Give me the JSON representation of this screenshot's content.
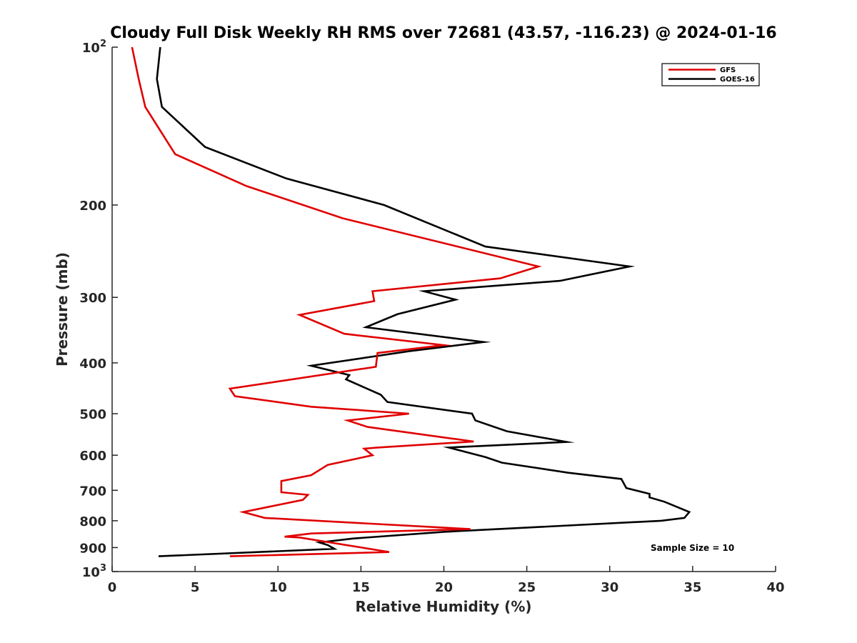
{
  "chart_data": {
    "type": "line",
    "title": "Cloudy Full Disk Weekly RH RMS over 72681 (43.57, -116.23) @ 2024-01-16",
    "xlabel": "Relative Humidity (%)",
    "ylabel": "Pressure (mb)",
    "xlim": [
      0,
      40
    ],
    "ylim": [
      100,
      1000
    ],
    "y_scale": "log",
    "y_reversed": true,
    "grid": false,
    "legend_position": "top-right",
    "x_ticks": [
      "0",
      "5",
      "10",
      "15",
      "20",
      "25",
      "30",
      "35",
      "40"
    ],
    "y_ticks": [
      {
        "value": 100,
        "label": "10",
        "sup": "2"
      },
      {
        "value": 200,
        "label": "200"
      },
      {
        "value": 300,
        "label": "300"
      },
      {
        "value": 400,
        "label": "400"
      },
      {
        "value": 500,
        "label": "500"
      },
      {
        "value": 600,
        "label": "600"
      },
      {
        "value": 700,
        "label": "700"
      },
      {
        "value": 800,
        "label": "800"
      },
      {
        "value": 900,
        "label": "900"
      },
      {
        "value": 1000,
        "label": "10",
        "sup": "3"
      }
    ],
    "annotation": "Sample Size = 10",
    "series": [
      {
        "name": "GFS",
        "color": "#e00000",
        "points": [
          [
            1.2,
            100
          ],
          [
            1.6,
            115
          ],
          [
            2.0,
            130
          ],
          [
            3.8,
            160
          ],
          [
            8.1,
            184
          ],
          [
            13.9,
            212
          ],
          [
            25.7,
            262
          ],
          [
            23.4,
            276
          ],
          [
            15.7,
            292
          ],
          [
            15.8,
            305
          ],
          [
            11.3,
            324
          ],
          [
            14.0,
            352
          ],
          [
            20.0,
            370
          ],
          [
            16.0,
            383
          ],
          [
            15.9,
            407
          ],
          [
            7.1,
            448
          ],
          [
            7.4,
            463
          ],
          [
            12.0,
            485
          ],
          [
            17.9,
            500
          ],
          [
            14.2,
            515
          ],
          [
            15.4,
            530
          ],
          [
            21.8,
            565
          ],
          [
            16.0,
            580
          ],
          [
            15.2,
            583
          ],
          [
            15.7,
            600
          ],
          [
            13.0,
            626
          ],
          [
            12.0,
            655
          ],
          [
            10.2,
            672
          ],
          [
            10.2,
            706
          ],
          [
            11.8,
            714
          ],
          [
            11.5,
            730
          ],
          [
            7.9,
            770
          ],
          [
            9.2,
            790
          ],
          [
            21.6,
            830
          ],
          [
            12.0,
            846
          ],
          [
            10.4,
            858
          ],
          [
            11.3,
            861
          ],
          [
            16.7,
            918
          ],
          [
            7.1,
            935
          ]
        ]
      },
      {
        "name": "GOES-16",
        "color": "#000000",
        "points": [
          [
            2.9,
            100
          ],
          [
            2.7,
            115
          ],
          [
            3.0,
            130
          ],
          [
            5.6,
            155
          ],
          [
            10.5,
            178
          ],
          [
            16.4,
            200
          ],
          [
            22.5,
            240
          ],
          [
            31.2,
            262
          ],
          [
            27.0,
            279
          ],
          [
            18.8,
            292
          ],
          [
            20.7,
            303
          ],
          [
            17.2,
            323
          ],
          [
            15.3,
            342
          ],
          [
            22.4,
            365
          ],
          [
            17.9,
            380
          ],
          [
            12.0,
            405
          ],
          [
            14.3,
            422
          ],
          [
            14.1,
            430
          ],
          [
            16.2,
            460
          ],
          [
            16.6,
            475
          ],
          [
            21.7,
            500
          ],
          [
            21.9,
            515
          ],
          [
            23.8,
            540
          ],
          [
            27.4,
            566
          ],
          [
            20.3,
            580
          ],
          [
            22.5,
            605
          ],
          [
            23.5,
            620
          ],
          [
            27.5,
            648
          ],
          [
            30.7,
            666
          ],
          [
            31.0,
            693
          ],
          [
            32.4,
            711
          ],
          [
            32.4,
            722
          ],
          [
            33.3,
            736
          ],
          [
            34.8,
            770
          ],
          [
            34.5,
            790
          ],
          [
            33.1,
            800
          ],
          [
            20.0,
            840
          ],
          [
            14.5,
            865
          ],
          [
            12.5,
            880
          ],
          [
            13.0,
            890
          ],
          [
            13.4,
            905
          ],
          [
            2.8,
            935
          ]
        ]
      }
    ]
  }
}
